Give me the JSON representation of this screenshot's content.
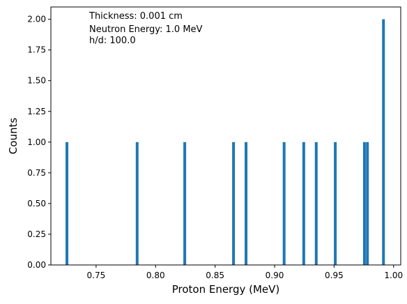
{
  "chart_data": {
    "type": "bar",
    "xlabel": "Proton Energy (MeV)",
    "ylabel": "Counts",
    "xlim": [
      0.712,
      1.006
    ],
    "ylim": [
      0,
      2.1
    ],
    "grid": false,
    "legend": "none",
    "bar_color": "#1f77b4",
    "x_ticks": [
      0.75,
      0.8,
      0.85,
      0.9,
      0.95,
      1.0
    ],
    "x_tick_labels": [
      "0.75",
      "0.80",
      "0.85",
      "0.90",
      "0.95",
      "1.00"
    ],
    "y_ticks": [
      0,
      0.25,
      0.5,
      0.75,
      1.0,
      1.25,
      1.5,
      1.75,
      2.0
    ],
    "y_tick_labels": [
      "0.00",
      "0.25",
      "0.50",
      "0.75",
      "1.00",
      "1.25",
      "1.50",
      "1.75",
      "2.00"
    ],
    "bars": [
      {
        "x": 0.7255,
        "count": 1
      },
      {
        "x": 0.7845,
        "count": 1
      },
      {
        "x": 0.8245,
        "count": 1
      },
      {
        "x": 0.8655,
        "count": 1
      },
      {
        "x": 0.876,
        "count": 1
      },
      {
        "x": 0.908,
        "count": 1
      },
      {
        "x": 0.9245,
        "count": 1
      },
      {
        "x": 0.935,
        "count": 1
      },
      {
        "x": 0.951,
        "count": 1
      },
      {
        "x": 0.9755,
        "count": 1
      },
      {
        "x": 0.978,
        "count": 1
      },
      {
        "x": 0.9915,
        "count": 2
      }
    ],
    "annotation_lines": [
      "Thickness: 0.001 cm",
      "Neutron Energy: 1.0 MeV",
      "h/d: 100.0"
    ]
  }
}
